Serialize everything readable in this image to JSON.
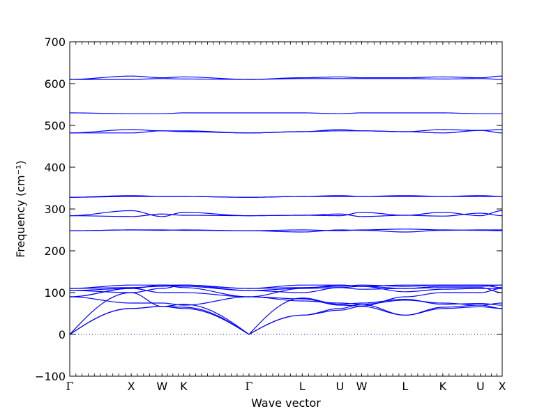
{
  "chart_data": {
    "type": "line",
    "title": "",
    "xlabel": "Wave vector",
    "ylabel": "Frequency (cm⁻¹)",
    "ylim": [
      -100,
      700
    ],
    "yticks": [
      -100,
      0,
      100,
      200,
      300,
      400,
      500,
      600,
      700
    ],
    "grid": false,
    "legend": "none",
    "line_color": "#0000ff",
    "zero_line_style": "dotted",
    "path_segments": [
      {
        "from": "Γ",
        "to": "X",
        "length": 1.0
      },
      {
        "from": "X",
        "to": "W",
        "length": 0.5
      },
      {
        "from": "W",
        "to": "K",
        "length": 0.3536
      },
      {
        "from": "K",
        "to": "Γ",
        "length": 1.0607
      },
      {
        "from": "Γ",
        "to": "L",
        "length": 0.866
      },
      {
        "from": "L",
        "to": "U",
        "length": 0.6124
      },
      {
        "from": "U",
        "to": "W",
        "length": 0.3536
      },
      {
        "from": "W",
        "to": "L",
        "length": 0.7071
      },
      {
        "from": "L",
        "to": "K",
        "length": 0.6124
      },
      {
        "from": "K",
        "to": "U",
        "length": 0.6124
      },
      {
        "from": "U",
        "to": "X",
        "length": 0.3536
      }
    ],
    "high_symmetry_labels": [
      {
        "label": "Γ",
        "x": 0.0
      },
      {
        "label": "X",
        "x": 1.0
      },
      {
        "label": "W",
        "x": 1.5
      },
      {
        "label": "K",
        "x": 1.8536
      },
      {
        "label": "Γ",
        "x": 2.9143
      },
      {
        "label": "L",
        "x": 3.7803
      },
      {
        "label": "U",
        "x": 4.3927
      },
      {
        "label": "W",
        "x": 4.7463
      },
      {
        "label": "L",
        "x": 5.4534
      },
      {
        "label": "K",
        "x": 6.0658
      },
      {
        "label": "U",
        "x": 6.6782
      },
      {
        "label": "X",
        "x": 7.0318
      }
    ],
    "band_values_at_labels": [
      [
        0,
        62,
        67,
        62,
        0,
        46,
        58,
        67,
        46,
        62,
        66,
        62
      ],
      [
        0,
        62,
        67,
        65,
        0,
        46,
        62,
        72,
        46,
        65,
        70,
        62
      ],
      [
        0,
        100,
        67,
        72,
        0,
        87,
        72,
        75,
        84,
        72,
        74,
        70
      ],
      [
        90,
        75,
        75,
        70,
        90,
        80,
        75,
        72,
        82,
        75,
        70,
        75
      ],
      [
        90,
        110,
        100,
        100,
        90,
        85,
        70,
        68,
        90,
        100,
        100,
        110
      ],
      [
        90,
        110,
        118,
        112,
        90,
        110,
        112,
        108,
        110,
        112,
        112,
        100
      ],
      [
        105,
        100,
        110,
        118,
        105,
        100,
        112,
        115,
        102,
        108,
        110,
        110
      ],
      [
        105,
        110,
        118,
        115,
        105,
        110,
        118,
        115,
        110,
        115,
        115,
        118
      ],
      [
        110,
        112,
        115,
        118,
        110,
        112,
        115,
        118,
        115,
        118,
        118,
        112
      ],
      [
        110,
        118,
        118,
        118,
        110,
        118,
        118,
        115,
        118,
        118,
        118,
        118
      ],
      [
        248,
        250,
        249,
        250,
        248,
        245,
        250,
        249,
        245,
        249,
        250,
        250
      ],
      [
        248,
        250,
        250,
        249,
        248,
        250,
        248,
        250,
        252,
        250,
        249,
        248
      ],
      [
        284,
        282,
        288,
        285,
        284,
        285,
        288,
        282,
        285,
        283,
        290,
        284
      ],
      [
        284,
        296,
        282,
        292,
        284,
        285,
        284,
        292,
        285,
        292,
        284,
        296
      ],
      [
        328,
        330,
        330,
        330,
        328,
        330,
        332,
        330,
        330,
        330,
        330,
        330
      ],
      [
        328,
        332,
        330,
        330,
        328,
        330,
        330,
        330,
        332,
        330,
        332,
        330
      ],
      [
        482,
        482,
        487,
        485,
        482,
        485,
        487,
        487,
        485,
        482,
        488,
        482
      ],
      [
        482,
        490,
        487,
        487,
        482,
        485,
        490,
        487,
        485,
        490,
        488,
        490
      ],
      [
        530,
        528,
        528,
        530,
        530,
        530,
        528,
        530,
        530,
        530,
        528,
        528
      ],
      [
        610,
        618,
        614,
        616,
        610,
        614,
        616,
        614,
        614,
        616,
        614,
        618
      ],
      [
        610,
        610,
        612,
        611,
        610,
        612,
        612,
        612,
        612,
        611,
        612,
        610
      ]
    ]
  }
}
